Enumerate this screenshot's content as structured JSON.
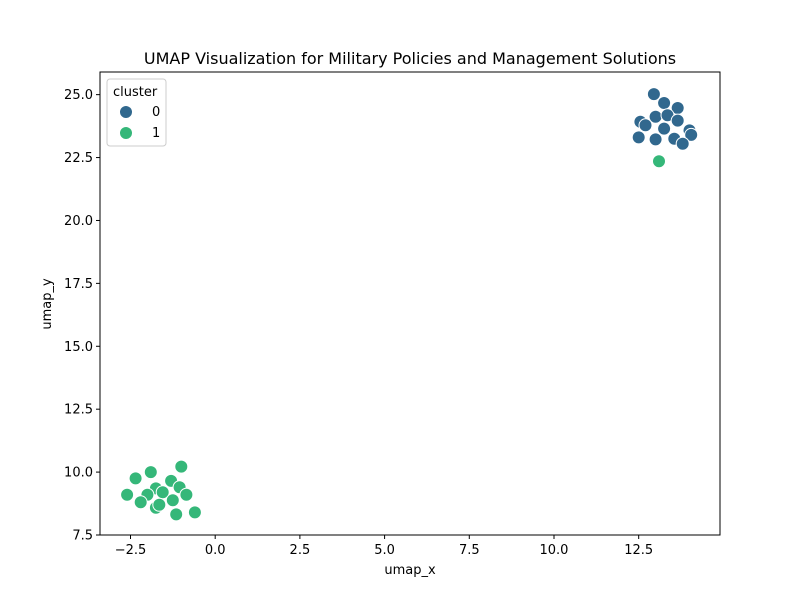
{
  "chart_data": {
    "type": "scatter",
    "title": "UMAP Visualization for Military Policies and Management Solutions",
    "xlabel": "umap_x",
    "ylabel": "umap_y",
    "xlim": [
      -3.4,
      14.9
    ],
    "ylim": [
      7.5,
      25.9
    ],
    "xticks": [
      -2.5,
      0.0,
      2.5,
      5.0,
      7.5,
      10.0,
      12.5
    ],
    "xtick_labels": [
      "−2.5",
      "0.0",
      "2.5",
      "5.0",
      "7.5",
      "10.0",
      "12.5"
    ],
    "yticks": [
      7.5,
      10.0,
      12.5,
      15.0,
      17.5,
      20.0,
      22.5,
      25.0
    ],
    "ytick_labels": [
      "7.5",
      "10.0",
      "12.5",
      "15.0",
      "17.5",
      "20.0",
      "22.5",
      "25.0"
    ],
    "grid": false,
    "legend": {
      "title": "cluster",
      "position": "top-left"
    },
    "series": [
      {
        "name": "0",
        "color": "#31688e",
        "points": [
          [
            12.95,
            25.02
          ],
          [
            13.25,
            24.67
          ],
          [
            13.65,
            24.47
          ],
          [
            12.55,
            23.92
          ],
          [
            12.7,
            23.78
          ],
          [
            13.0,
            24.12
          ],
          [
            13.35,
            24.18
          ],
          [
            13.65,
            23.97
          ],
          [
            13.25,
            23.65
          ],
          [
            14.0,
            23.58
          ],
          [
            14.05,
            23.4
          ],
          [
            12.5,
            23.3
          ],
          [
            13.0,
            23.22
          ],
          [
            13.55,
            23.25
          ],
          [
            13.8,
            23.05
          ]
        ]
      },
      {
        "name": "1",
        "color": "#35b779",
        "points": [
          [
            13.1,
            22.35
          ],
          [
            -2.35,
            9.75
          ],
          [
            -1.9,
            10.0
          ],
          [
            -1.0,
            10.22
          ],
          [
            -1.3,
            9.65
          ],
          [
            -1.75,
            9.35
          ],
          [
            -1.05,
            9.4
          ],
          [
            -2.6,
            9.1
          ],
          [
            -2.0,
            9.1
          ],
          [
            -1.55,
            9.2
          ],
          [
            -0.85,
            9.1
          ],
          [
            -2.2,
            8.8
          ],
          [
            -1.25,
            8.88
          ],
          [
            -1.75,
            8.58
          ],
          [
            -1.65,
            8.7
          ],
          [
            -0.6,
            8.4
          ],
          [
            -1.15,
            8.32
          ]
        ]
      }
    ]
  }
}
